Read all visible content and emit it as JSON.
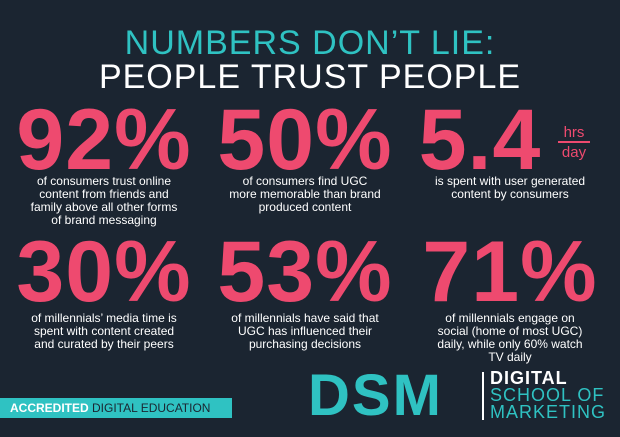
{
  "header": {
    "line1": "NUMBERS DON’T LIE:",
    "line2": "PEOPLE TRUST PEOPLE"
  },
  "stats": [
    {
      "figure": "92%",
      "lines": [
        "of consumers trust online",
        "content from friends and",
        "family above all other forms",
        "of brand messaging"
      ]
    },
    {
      "figure": "50%",
      "lines": [
        "of consumers find UGC",
        "more memorable than brand",
        "produced content"
      ]
    },
    {
      "figure": "5.4",
      "unit_top": "hrs",
      "unit_bottom": "day",
      "lines": [
        "is spent with user generated",
        "content by consumers"
      ]
    },
    {
      "figure": "30%",
      "lines": [
        "of millennials’ media time is",
        "spent with content created",
        "and curated by their peers"
      ]
    },
    {
      "figure": "53%",
      "lines": [
        "of millennials have said that",
        "UGC has influenced their",
        "purchasing decisions"
      ]
    },
    {
      "figure": "71%",
      "lines": [
        "of millennials engage on",
        "social (home of most UGC)",
        "daily, while only 60% watch",
        "TV daily"
      ]
    }
  ],
  "footer": {
    "badge_bold": "ACCREDITED",
    "badge_rest": "DIGITAL EDUCATION",
    "logo": "DSM",
    "brand_line1": "DIGITAL",
    "brand_line2": "SCHOOL OF",
    "brand_line3": "MARKETING"
  }
}
